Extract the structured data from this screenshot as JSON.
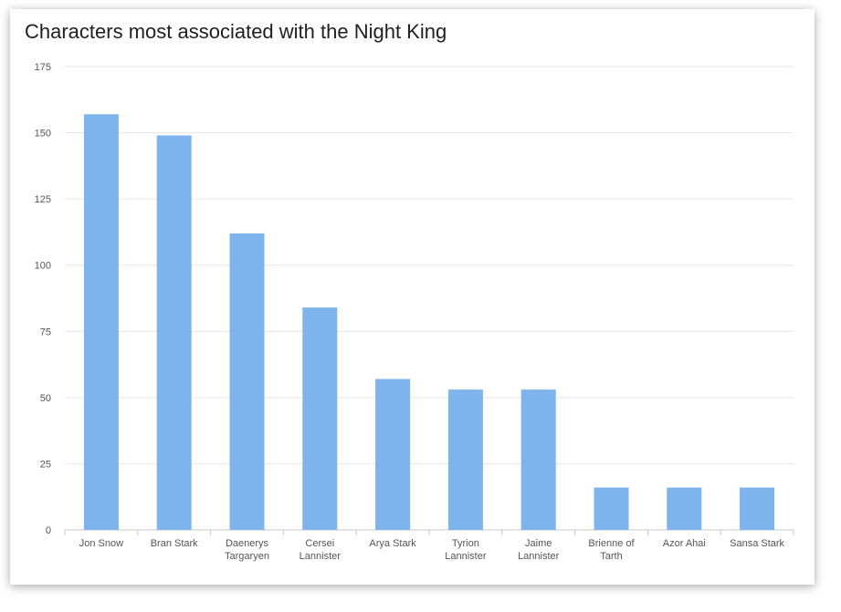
{
  "chart_data": {
    "type": "bar",
    "title": "Characters most associated with the Night King",
    "xlabel": "",
    "ylabel": "",
    "categories": [
      [
        "Jon Snow"
      ],
      [
        "Bran Stark"
      ],
      [
        "Daenerys",
        "Targaryen"
      ],
      [
        "Cersei",
        "Lannister"
      ],
      [
        "Arya Stark"
      ],
      [
        "Tyrion",
        "Lannister"
      ],
      [
        "Jaime",
        "Lannister"
      ],
      [
        "Brienne of",
        "Tarth"
      ],
      [
        "Azor Ahai"
      ],
      [
        "Sansa Stark"
      ]
    ],
    "values": [
      157,
      149,
      112,
      84,
      57,
      53,
      53,
      16,
      16,
      16
    ],
    "ylim": [
      0,
      175
    ],
    "yticks": [
      "0",
      "25",
      "50",
      "75",
      "100",
      "125",
      "150",
      "175"
    ],
    "grid": true,
    "legend": "none",
    "bar_color": "#7cb4eb",
    "grid_color": "#e6e6e6",
    "axis_color": "#c8c8c8"
  }
}
